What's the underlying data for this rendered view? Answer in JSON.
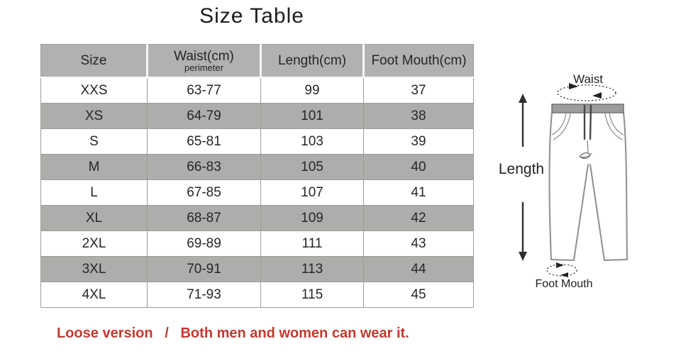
{
  "title": "Size Table",
  "chart_data": {
    "type": "table",
    "title": "Size Table",
    "columns": [
      "Size",
      "Waist(cm)",
      "Length(cm)",
      "Foot Mouth(cm)"
    ],
    "waist_subheader": "perimeter",
    "rows": [
      {
        "size": "XXS",
        "waist": "63-77",
        "length": "99",
        "foot_mouth": "37"
      },
      {
        "size": "XS",
        "waist": "64-79",
        "length": "101",
        "foot_mouth": "38"
      },
      {
        "size": "S",
        "waist": "65-81",
        "length": "103",
        "foot_mouth": "39"
      },
      {
        "size": "M",
        "waist": "66-83",
        "length": "105",
        "foot_mouth": "40"
      },
      {
        "size": "L",
        "waist": "67-85",
        "length": "107",
        "foot_mouth": "41"
      },
      {
        "size": "XL",
        "waist": "68-87",
        "length": "109",
        "foot_mouth": "42"
      },
      {
        "size": "2XL",
        "waist": "69-89",
        "length": "111",
        "foot_mouth": "43"
      },
      {
        "size": "3XL",
        "waist": "70-91",
        "length": "113",
        "foot_mouth": "44"
      },
      {
        "size": "4XL",
        "waist": "71-93",
        "length": "115",
        "foot_mouth": "45"
      }
    ],
    "layout_hints": {
      "alternating_row_shading": true,
      "shaded_rows": "even"
    }
  },
  "figure": {
    "waist_label": "Waist",
    "length_label": "Length",
    "foot_mouth_label": "Foot Mouth"
  },
  "footer": {
    "text": "Loose version   /   Both men and women can wear it."
  },
  "colors": {
    "header_bg": "#b1b1af",
    "row_alt_bg": "#adadab",
    "border": "#9c9c98",
    "accent_red": "#c2392f",
    "pants_outline": "#8f8f8f",
    "waistband_fill": "#9c9c9c"
  }
}
